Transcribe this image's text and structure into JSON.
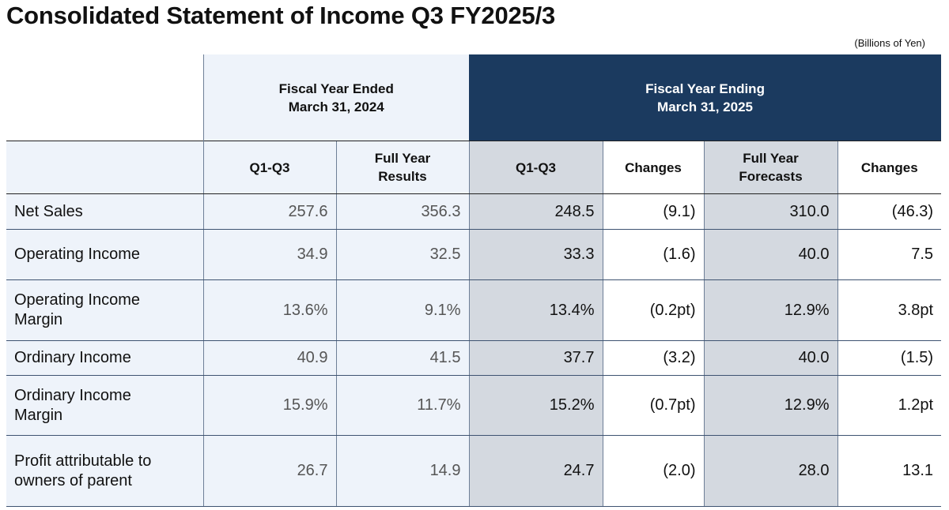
{
  "title": "Consolidated Statement of Income Q3 FY2025/3",
  "unit_note": "(Billions of Yen)",
  "header": {
    "fy2024_line1": "Fiscal Year Ended",
    "fy2024_line2": "March 31, 2024",
    "fy2025_line1": "Fiscal Year Ending",
    "fy2025_line2": "March 31, 2025"
  },
  "columns": {
    "q1q3_prev": "Q1-Q3",
    "full_year_results_l1": "Full Year",
    "full_year_results_l2": "Results",
    "q1q3_curr": "Q1-Q3",
    "changes_q": "Changes",
    "forecasts_l1": "Full Year",
    "forecasts_l2": "Forecasts",
    "changes_fy": "Changes"
  },
  "rows": [
    {
      "label_l1": "Net Sales",
      "label_l2": "",
      "q1q3_prev": "257.6",
      "fy_prev": "356.3",
      "q1q3_curr": "248.5",
      "chg_q": "(9.1)",
      "forecast": "310.0",
      "chg_fy": "(46.3)"
    },
    {
      "label_l1": "Operating Income",
      "label_l2": "",
      "q1q3_prev": "34.9",
      "fy_prev": "32.5",
      "q1q3_curr": "33.3",
      "chg_q": "(1.6)",
      "forecast": "40.0",
      "chg_fy": "7.5"
    },
    {
      "label_l1": "Operating Income",
      "label_l2": "Margin",
      "q1q3_prev": "13.6%",
      "fy_prev": "9.1%",
      "q1q3_curr": "13.4%",
      "chg_q": "(0.2pt)",
      "forecast": "12.9%",
      "chg_fy": "3.8pt"
    },
    {
      "label_l1": "Ordinary Income",
      "label_l2": "",
      "q1q3_prev": "40.9",
      "fy_prev": "41.5",
      "q1q3_curr": "37.7",
      "chg_q": "(3.2)",
      "forecast": "40.0",
      "chg_fy": "(1.5)"
    },
    {
      "label_l1": "Ordinary Income",
      "label_l2": "Margin",
      "q1q3_prev": "15.9%",
      "fy_prev": "11.7%",
      "q1q3_curr": "15.2%",
      "chg_q": "(0.7pt)",
      "forecast": "12.9%",
      "chg_fy": "1.2pt"
    },
    {
      "label_l1": "Profit attributable to",
      "label_l2": "owners of parent",
      "q1q3_prev": "26.7",
      "fy_prev": "14.9",
      "q1q3_curr": "24.7",
      "chg_q": "(2.0)",
      "forecast": "28.0",
      "chg_fy": "13.1"
    }
  ]
}
